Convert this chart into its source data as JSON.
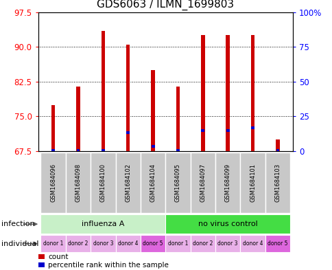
{
  "title": "GDS6063 / ILMN_1699803",
  "samples": [
    "GSM1684096",
    "GSM1684098",
    "GSM1684100",
    "GSM1684102",
    "GSM1684104",
    "GSM1684095",
    "GSM1684097",
    "GSM1684099",
    "GSM1684101",
    "GSM1684103"
  ],
  "red_top": [
    77.5,
    81.5,
    93.5,
    90.5,
    85.0,
    81.5,
    92.5,
    92.5,
    92.5,
    70.0
  ],
  "blue_pos": [
    67.65,
    67.7,
    67.65,
    71.5,
    68.5,
    67.7,
    72.0,
    72.0,
    72.5,
    67.7
  ],
  "ylim_left": [
    67.5,
    97.5
  ],
  "yticks_left": [
    67.5,
    75.0,
    82.5,
    90.0,
    97.5
  ],
  "ylim_right": [
    0,
    100
  ],
  "yticks_right": [
    0,
    25,
    50,
    75,
    100
  ],
  "ytick_labels_right": [
    "0",
    "25",
    "50",
    "75",
    "100%"
  ],
  "infection_groups": [
    {
      "label": "influenza A",
      "start": 0,
      "end": 5,
      "color": "#c8f0c8"
    },
    {
      "label": "no virus control",
      "start": 5,
      "end": 10,
      "color": "#44dd44"
    }
  ],
  "individual_labels": [
    "donor 1",
    "donor 2",
    "donor 3",
    "donor 4",
    "donor 5",
    "donor 1",
    "donor 2",
    "donor 3",
    "donor 4",
    "donor 5"
  ],
  "individual_colors": [
    "#e8b0e8",
    "#e8b0e8",
    "#e8b0e8",
    "#e8b0e8",
    "#dd66dd",
    "#e8b0e8",
    "#e8b0e8",
    "#e8b0e8",
    "#e8b0e8",
    "#dd66dd"
  ],
  "bar_color_red": "#cc0000",
  "bar_color_blue": "#0000cc",
  "bar_width": 0.15,
  "bg_color": "#ffffff",
  "label_infection": "infection",
  "label_individual": "individual",
  "legend_count": "count",
  "legend_percentile": "percentile rank within the sample",
  "title_fontsize": 11,
  "tick_fontsize": 8.5,
  "sample_box_color": "#c8c8c8",
  "left_label_color": "#606060"
}
